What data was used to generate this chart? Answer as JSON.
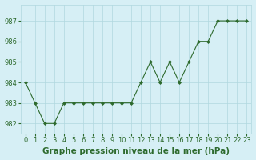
{
  "x": [
    0,
    1,
    2,
    3,
    4,
    5,
    6,
    7,
    8,
    9,
    10,
    11,
    12,
    13,
    14,
    15,
    16,
    17,
    18,
    19,
    20,
    21,
    22,
    23
  ],
  "y": [
    984,
    983,
    982,
    982,
    983,
    983,
    983,
    983,
    983,
    983,
    983,
    983,
    984,
    985,
    984,
    985,
    984,
    985,
    986,
    986,
    987,
    987,
    987,
    987
  ],
  "line_color": "#2d6a2d",
  "marker": "D",
  "marker_size": 2.0,
  "bg_color": "#d6eff5",
  "grid_color": "#b0d8df",
  "xlabel": "Graphe pression niveau de la mer (hPa)",
  "xlabel_fontsize": 7.5,
  "xlabel_color": "#2d6a2d",
  "xlabel_bold": true,
  "yticks": [
    982,
    983,
    984,
    985,
    986,
    987
  ],
  "ytick_labels": [
    "982",
    "983",
    "984",
    "985",
    "986",
    "987"
  ],
  "ylim": [
    981.5,
    987.8
  ],
  "xlim": [
    -0.5,
    23.5
  ],
  "tick_fontsize": 6.0,
  "tick_color": "#2d6a2d",
  "figsize": [
    3.2,
    2.0
  ],
  "dpi": 100
}
